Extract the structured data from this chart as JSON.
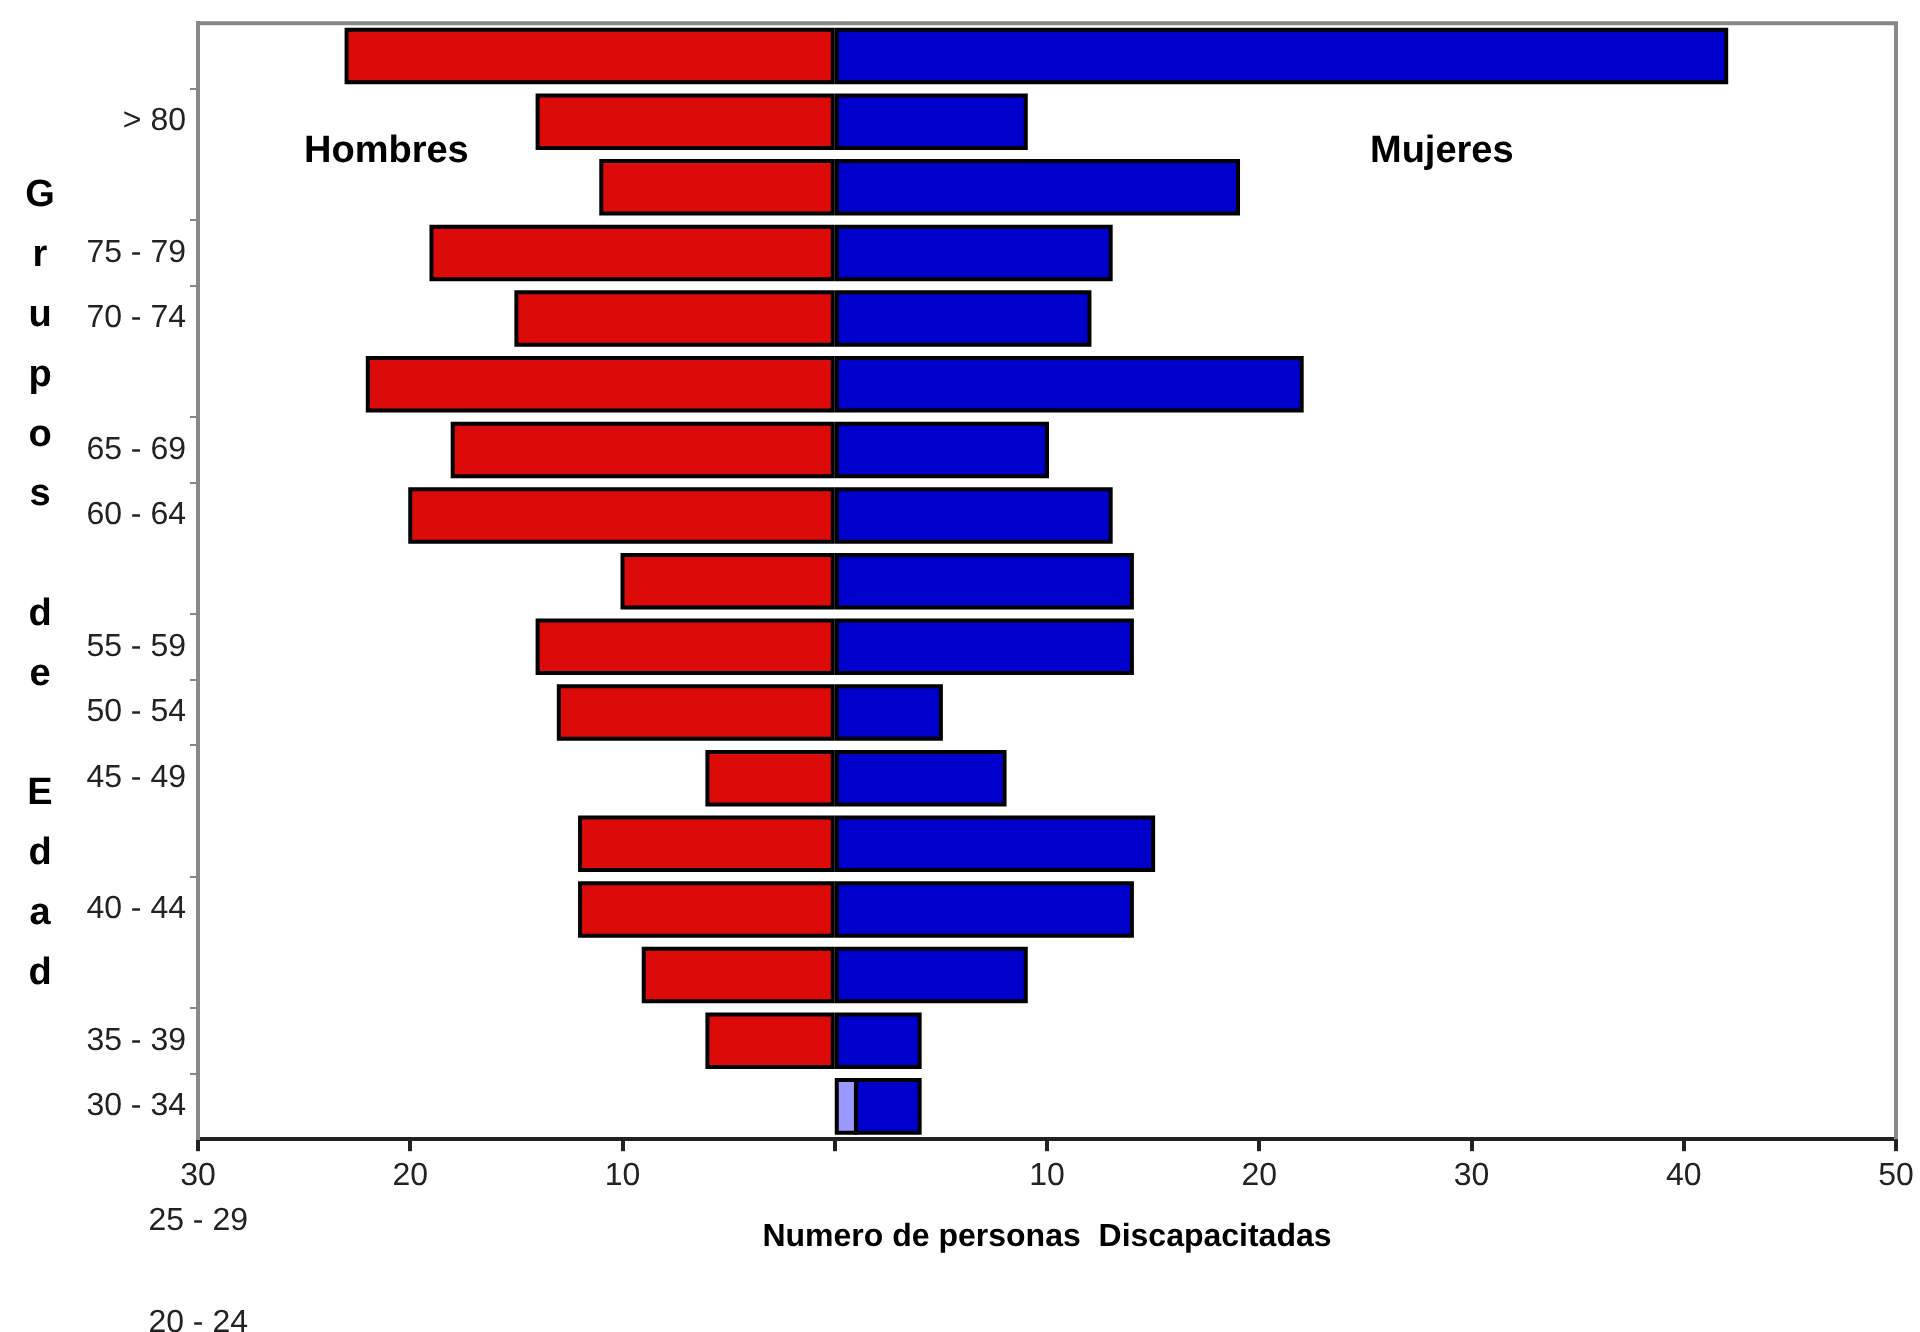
{
  "chart_data": {
    "type": "bar",
    "orientation": "horizontal",
    "stacked": true,
    "categories": [
      null,
      "> 80",
      null,
      "75 - 79",
      "70 - 74",
      null,
      "65 - 69",
      "60 - 64",
      null,
      "55 - 59",
      "50 - 54",
      "45 - 49",
      null,
      "40 - 44",
      null,
      "35 - 39",
      "30 - 34"
    ],
    "series": [
      {
        "name": "Hombres",
        "color": "#dd0a0a",
        "values": [
          -23,
          -14,
          -11,
          -19,
          -15,
          -22,
          -18,
          -20,
          -10,
          -14,
          -13,
          -6,
          -12,
          -12,
          -9,
          -6,
          null
        ]
      },
      {
        "color": "#9999ff",
        "values": [
          null,
          null,
          null,
          null,
          null,
          null,
          null,
          null,
          null,
          null,
          null,
          null,
          null,
          null,
          null,
          null,
          1
        ]
      },
      {
        "name": "Mujeres",
        "color": "#0000cc",
        "values": [
          42,
          9,
          19,
          13,
          12,
          22,
          10,
          13,
          14,
          14,
          5,
          8,
          15,
          14,
          9,
          4,
          3
        ]
      }
    ],
    "xlim": [
      -30,
      50
    ],
    "xticks": [
      {
        "value": -30,
        "label": "30"
      },
      {
        "value": -20,
        "label": "20"
      },
      {
        "value": -10,
        "label": "10"
      },
      {
        "value": 0,
        "label": null
      },
      10,
      20,
      30,
      40,
      50
    ],
    "xlabel": "Numero de personas  Discapacitadas",
    "ylabel": "Grupos de Edad",
    "annotations": [
      "25 - 29",
      "20 - 24"
    ]
  }
}
